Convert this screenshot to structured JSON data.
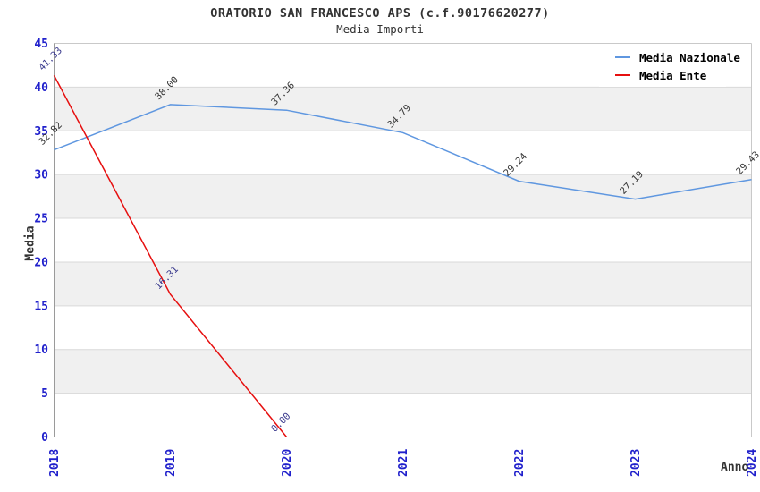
{
  "chart_data": {
    "type": "line",
    "title": "ORATORIO SAN FRANCESCO APS (c.f.90176620277)",
    "subtitle": "Media Importi",
    "xlabel": "Anno",
    "ylabel": "Media",
    "x": [
      2018,
      2019,
      2020,
      2021,
      2022,
      2023,
      2024
    ],
    "xtick_labels": [
      "2018",
      "2019",
      "2020",
      "2021",
      "2022",
      "2023",
      "2024"
    ],
    "ylim": [
      0,
      45
    ],
    "ytick_step": 5,
    "ytick_labels": [
      "0",
      "5",
      "10",
      "15",
      "20",
      "25",
      "30",
      "35",
      "40",
      "45"
    ],
    "grid": "horizontal gridlines with alternating gray bands",
    "legend_position": "top-right",
    "series": [
      {
        "name": "Media Nazionale",
        "color": "#5f97e0",
        "label_color": "#333333",
        "x": [
          2018,
          2019,
          2020,
          2021,
          2022,
          2023,
          2024
        ],
        "values": [
          32.82,
          38.0,
          37.36,
          34.79,
          29.24,
          27.19,
          29.43
        ]
      },
      {
        "name": "Media Ente",
        "color": "#e60f0f",
        "label_color": "#38388c",
        "x": [
          2018,
          2019,
          2020
        ],
        "values": [
          41.33,
          16.31,
          0.0
        ]
      }
    ],
    "colors": {
      "tick_label": "#2121cc",
      "band": "#f0f0f0",
      "gridline": "#d9d9d9",
      "border_dark": "#9a9a9a",
      "border_light": "#c9c9c9",
      "title_text": "#333333"
    }
  }
}
